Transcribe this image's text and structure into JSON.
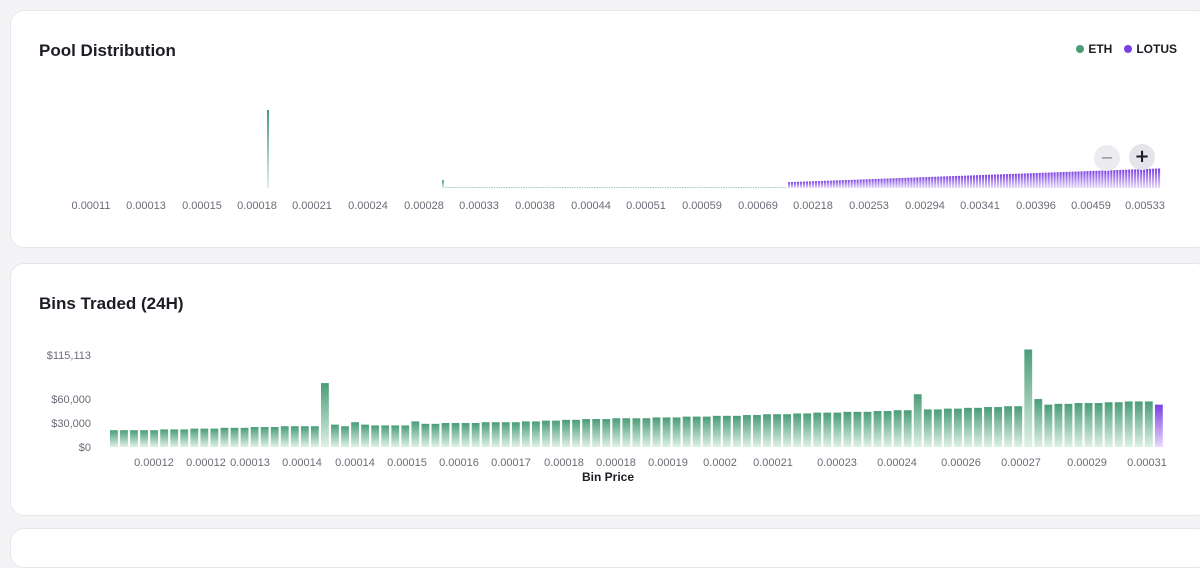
{
  "colors": {
    "eth": "#4a9d77",
    "eth_light": "#dff1e8",
    "lotus": "#7b3fe4",
    "lotus_light": "#e7dafb"
  },
  "pool": {
    "title": "Pool Distribution",
    "legend": [
      {
        "label": "ETH",
        "color": "#4a9d77"
      },
      {
        "label": "LOTUS",
        "color": "#7b3fe4"
      }
    ],
    "zoom_out_icon": "−",
    "zoom_in_icon": "+"
  },
  "bins": {
    "title": "Bins Traded (24H)"
  },
  "chart_data": [
    {
      "type": "bar",
      "title": "Pool Distribution",
      "series_names": [
        "ETH",
        "LOTUS"
      ],
      "x_tick_labels": [
        "0.00011",
        "0.00013",
        "0.00015",
        "0.00018",
        "0.00021",
        "0.00024",
        "0.00028",
        "0.00033",
        "0.00038",
        "0.00044",
        "0.00051",
        "0.00059",
        "0.00069",
        "0.00218",
        "0.00253",
        "0.00294",
        "0.00341",
        "0.00396",
        "0.00459",
        "0.00533"
      ],
      "bins": [
        {
          "price": "0.00018",
          "token": "ETH",
          "value": 80
        },
        {
          "price": "0.00028",
          "token": "ETH",
          "value": 8
        },
        {
          "range": [
            "0.00029",
            "0.00069"
          ],
          "token": "ETH",
          "value_each": 1,
          "count": 140
        },
        {
          "range": [
            "0.00218",
            "0.00533"
          ],
          "token": "LOTUS",
          "value_start": 6,
          "value_end": 20,
          "count": 125
        }
      ]
    },
    {
      "type": "bar",
      "title": "Bins Traded (24H)",
      "xlabel": "Bin Price",
      "ylabel": "",
      "y_tick_labels": [
        "$115,113",
        "$60,000",
        "$30,000",
        "$0"
      ],
      "y_tick_values": [
        115113,
        60000,
        30000,
        0
      ],
      "ylim": [
        0,
        115113
      ],
      "x_tick_labels": [
        "0.00012",
        "0.00012",
        "0.00013",
        "0.00014",
        "0.00014",
        "0.00015",
        "0.00016",
        "0.00017",
        "0.00018",
        "0.00018",
        "0.00019",
        "0.0002",
        "0.00021",
        "0.00023",
        "0.00024",
        "0.00026",
        "0.00027",
        "0.00029",
        "0.00031"
      ],
      "values": [
        21000,
        21000,
        21000,
        21000,
        21000,
        22000,
        22000,
        22000,
        23000,
        23000,
        23000,
        24000,
        24000,
        24000,
        25000,
        25000,
        25000,
        26000,
        26000,
        26000,
        26000,
        80000,
        28000,
        26000,
        31000,
        28000,
        27000,
        27000,
        27000,
        27000,
        32000,
        29000,
        29000,
        30000,
        30000,
        30000,
        30000,
        31000,
        31000,
        31000,
        31000,
        32000,
        32000,
        33000,
        33000,
        34000,
        34000,
        35000,
        35000,
        35000,
        36000,
        36000,
        36000,
        36000,
        37000,
        37000,
        37000,
        38000,
        38000,
        38000,
        39000,
        39000,
        39000,
        40000,
        40000,
        41000,
        41000,
        41000,
        42000,
        42000,
        43000,
        43000,
        43000,
        44000,
        44000,
        44000,
        45000,
        45000,
        46000,
        46000,
        66000,
        47000,
        47000,
        48000,
        48000,
        49000,
        49000,
        50000,
        50000,
        51000,
        51000,
        122000,
        60000,
        53000,
        54000,
        54000,
        55000,
        55000,
        55000,
        56000,
        56000,
        57000,
        57000,
        57000,
        53000
      ],
      "last_bin_token": "LOTUS"
    }
  ]
}
